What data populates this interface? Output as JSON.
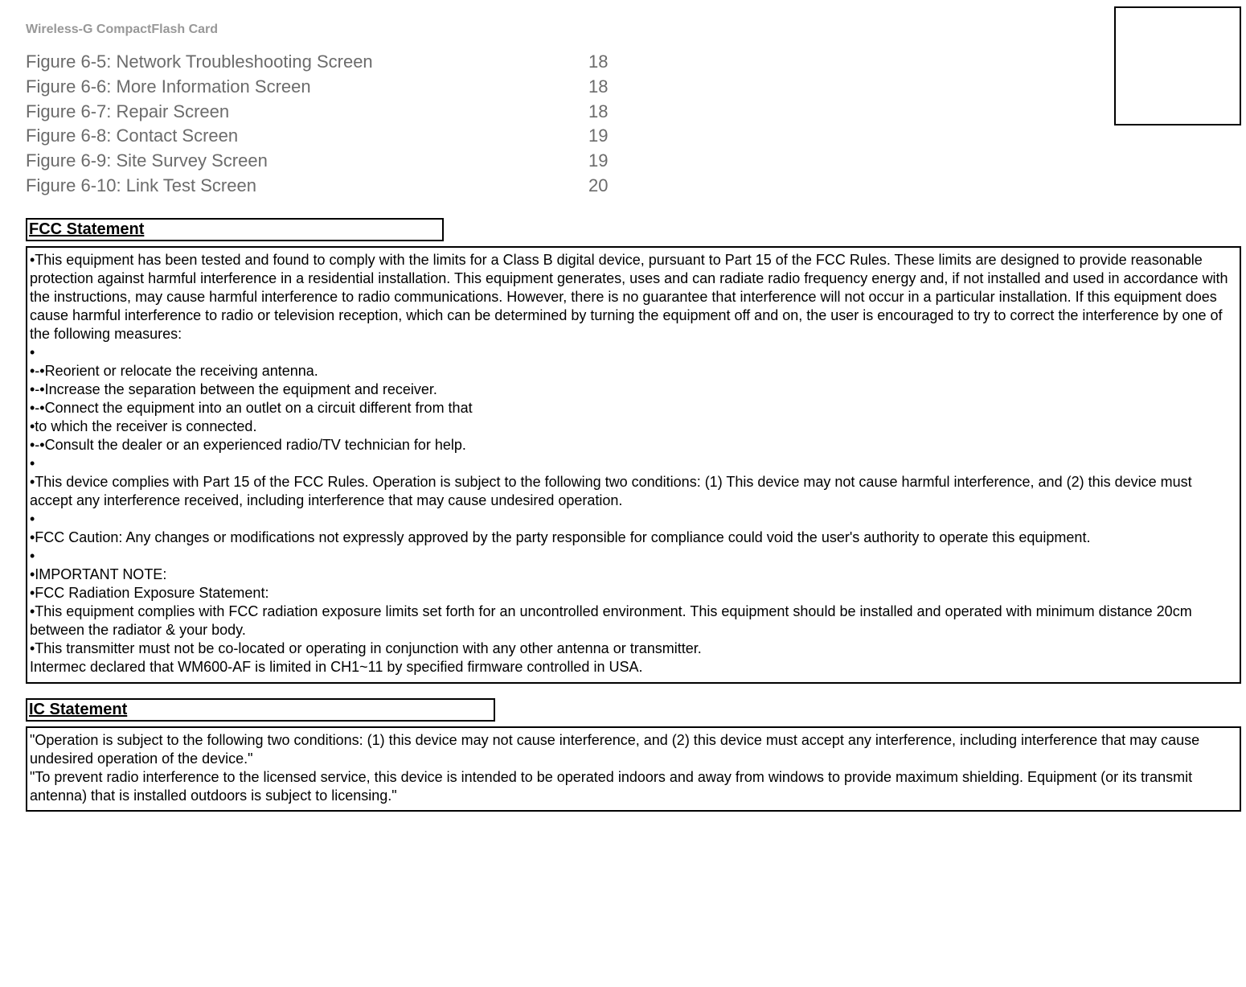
{
  "colors": {
    "text_main": "#000000",
    "text_muted": "#6b6b6b",
    "text_header": "#989898",
    "border": "#000000",
    "background": "#ffffff"
  },
  "typography": {
    "product_header_size_pt": 12,
    "figure_list_size_pt": 17,
    "section_title_size_pt": 15,
    "body_size_pt": 13
  },
  "product_header": "Wireless-G CompactFlash Card",
  "figures": [
    {
      "label": "Figure 6-5: Network Troubleshooting Screen",
      "page": "18"
    },
    {
      "label": "Figure 6-6: More Information Screen",
      "page": "18"
    },
    {
      "label": "Figure 6-7: Repair Screen",
      "page": "18"
    },
    {
      "label": "Figure 6-8: Contact Screen",
      "page": "19"
    },
    {
      "label": "Figure 6-9: Site Survey Screen",
      "page": "19"
    },
    {
      "label": "Figure 6-10: Link Test Screen",
      "page": "20"
    }
  ],
  "fcc": {
    "title": "FCC Statement",
    "lines": [
      "•This equipment has been tested and found to comply with the limits for a Class B digital device, pursuant to Part 15 of the FCC Rules.  These limits are designed to provide reasonable protection against harmful interference in a residential installation.  This equipment generates, uses and can radiate radio frequency energy and, if not installed and used in accordance with the instructions, may cause harmful interference to radio communications.  However, there is no guarantee that interference will not occur in a particular installation.  If this equipment does cause harmful interference to radio or television reception, which can be determined by turning the equipment off and on, the user is encouraged to try to correct the interference by one of the following measures:",
      "•",
      "•-•Reorient or relocate the receiving antenna.",
      "•-•Increase the separation between the equipment and receiver.",
      "•-•Connect the equipment into an outlet on a circuit different from that",
      "•to which the receiver is connected.",
      "•-•Consult the dealer or an experienced radio/TV technician for help.",
      "•",
      "•This device complies with Part 15 of the FCC Rules. Operation is subject to the following two conditions: (1) This device may not cause harmful interference, and (2) this device must accept any interference received, including interference that may cause undesired operation.",
      "•",
      "•FCC Caution: Any changes or modifications not expressly approved by the party responsible for compliance could void the user's authority to operate this equipment.",
      "•",
      "•IMPORTANT NOTE:",
      "•FCC Radiation Exposure Statement:",
      "•This equipment complies with FCC radiation exposure limits set forth for an uncontrolled environment. This equipment should be installed and operated with minimum distance 20cm between the radiator & your body.",
      "•This transmitter must not be co-located or operating in conjunction with any other antenna or transmitter.",
      "Intermec  declared that WM600-AF is limited in CH1~11 by specified firmware controlled in USA."
    ]
  },
  "ic": {
    "title": "IC Statement",
    "lines": [
      "\"Operation is subject to the following two conditions: (1) this device may not cause interference, and (2) this device must accept any interference, including interference that may cause undesired operation of the device.\"",
      "\"To prevent radio interference to the licensed service, this device is intended to be operated indoors and away from windows to provide maximum shielding. Equipment (or its transmit antenna) that is installed outdoors is subject to licensing.\""
    ]
  }
}
